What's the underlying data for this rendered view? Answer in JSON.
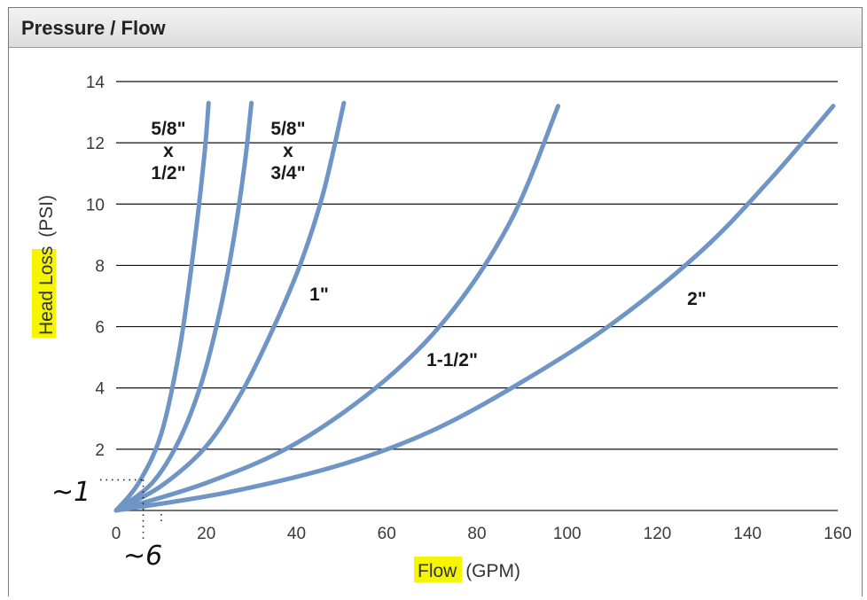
{
  "panel": {
    "title": "Pressure / Flow"
  },
  "chart_data": {
    "type": "line",
    "title": "",
    "xlabel": {
      "main": "Flow",
      "unit": "(GPM)"
    },
    "ylabel": {
      "main": "Head Loss",
      "unit": "(PSI)"
    },
    "xlim": [
      0,
      160
    ],
    "ylim": [
      0,
      14
    ],
    "x_ticks": [
      0,
      20,
      40,
      60,
      80,
      100,
      120,
      140,
      160
    ],
    "y_ticks": [
      2,
      4,
      6,
      8,
      10,
      12,
      14
    ],
    "grid": "horizontal",
    "line_color": "#6f95c6",
    "highlight_color": "#f5f500",
    "series": [
      {
        "name": "5/8\" x 1/2\"",
        "label_lines": [
          "5/8\"",
          "x",
          "1/2\""
        ],
        "points": [
          [
            0,
            0
          ],
          [
            5,
            0.9
          ],
          [
            10,
            2.5
          ],
          [
            14,
            5.2
          ],
          [
            17,
            8.3
          ],
          [
            19.5,
            11.5
          ],
          [
            20.5,
            13.3
          ]
        ]
      },
      {
        "name": "",
        "label_lines": [],
        "points": [
          [
            0,
            0
          ],
          [
            8,
            0.9
          ],
          [
            14,
            2.3
          ],
          [
            19,
            4.2
          ],
          [
            23,
            6.5
          ],
          [
            26,
            8.8
          ],
          [
            28.5,
            11.3
          ],
          [
            30,
            13.3
          ]
        ]
      },
      {
        "name": "5/8\" x 3/4\"",
        "label_lines": [
          "5/8\"",
          "x",
          "3/4\""
        ],
        "points": [
          [
            0,
            0
          ],
          [
            10,
            0.8
          ],
          [
            20,
            2.1
          ],
          [
            28,
            3.9
          ],
          [
            35,
            6
          ],
          [
            41,
            8.1
          ],
          [
            46,
            10.4
          ],
          [
            50.5,
            13.3
          ]
        ]
      },
      {
        "name": "1\"",
        "label_lines": [
          "1\""
        ],
        "points": []
      },
      {
        "name": "1-1/2\"",
        "label_lines": [
          "1-1/2\""
        ],
        "points": [
          [
            0,
            0
          ],
          [
            20,
            0.9
          ],
          [
            40,
            2.2
          ],
          [
            60,
            4.3
          ],
          [
            75,
            6.6
          ],
          [
            88,
            9.6
          ],
          [
            98,
            13.2
          ]
        ]
      },
      {
        "name": "2\"",
        "label_lines": [
          "2\""
        ],
        "points": [
          [
            0,
            0
          ],
          [
            25,
            0.6
          ],
          [
            50,
            1.5
          ],
          [
            70,
            2.6
          ],
          [
            90,
            4.2
          ],
          [
            110,
            6.1
          ],
          [
            130,
            8.5
          ],
          [
            145,
            10.8
          ],
          [
            159,
            13.2
          ]
        ]
      }
    ],
    "annotations": {
      "y_note": "~1",
      "x_note": "~6",
      "y_note_value": 1,
      "x_note_value": 6
    }
  }
}
